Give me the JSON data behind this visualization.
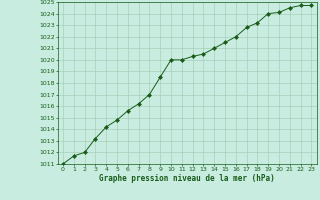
{
  "x": [
    0,
    1,
    2,
    3,
    4,
    5,
    6,
    7,
    8,
    9,
    10,
    11,
    12,
    13,
    14,
    15,
    16,
    17,
    18,
    19,
    20,
    21,
    22,
    23
  ],
  "y": [
    1011.0,
    1011.7,
    1012.0,
    1013.2,
    1014.2,
    1014.8,
    1015.6,
    1016.2,
    1017.0,
    1018.5,
    1020.0,
    1020.0,
    1020.3,
    1020.5,
    1021.0,
    1021.5,
    1022.0,
    1022.8,
    1023.2,
    1024.0,
    1024.1,
    1024.5,
    1024.7,
    1024.7
  ],
  "line_color": "#1a5c1a",
  "marker": "D",
  "marker_size": 2.0,
  "bg_color": "#c8ede0",
  "grid_color": "#a0c8b0",
  "xlabel": "Graphe pression niveau de la mer (hPa)",
  "xlabel_color": "#1a5c1a",
  "tick_color": "#1a5c1a",
  "ylim": [
    1011,
    1025
  ],
  "xlim": [
    -0.5,
    23.5
  ],
  "yticks": [
    1011,
    1012,
    1013,
    1014,
    1015,
    1016,
    1017,
    1018,
    1019,
    1020,
    1021,
    1022,
    1023,
    1024,
    1025
  ],
  "xticks": [
    0,
    1,
    2,
    3,
    4,
    5,
    6,
    7,
    8,
    9,
    10,
    11,
    12,
    13,
    14,
    15,
    16,
    17,
    18,
    19,
    20,
    21,
    22,
    23
  ],
  "figsize": [
    3.2,
    2.0
  ],
  "dpi": 100
}
